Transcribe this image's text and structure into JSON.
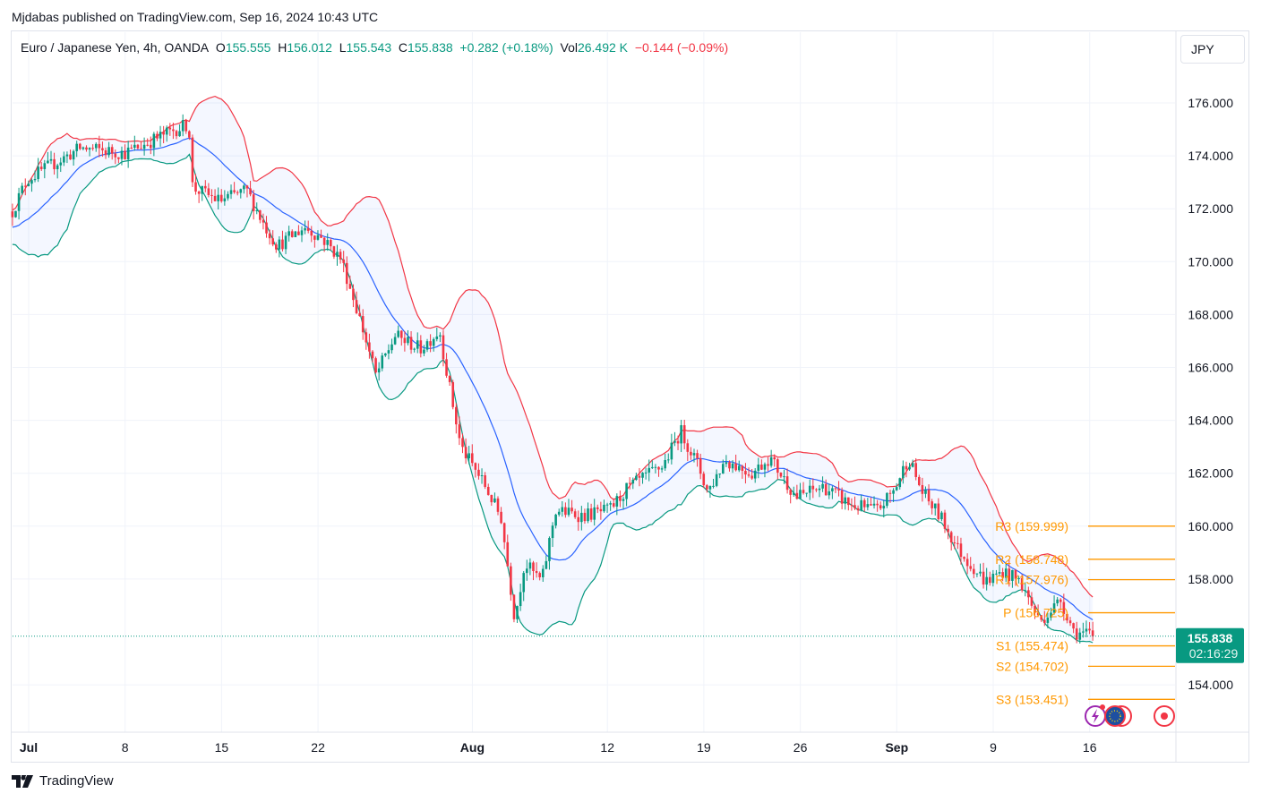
{
  "publisher": "Mjdabas published on TradingView.com, Sep 16, 2024 10:43 UTC",
  "legend": {
    "symbol": "Euro / Japanese Yen, 4h, OANDA",
    "o_label": "O",
    "o": "155.555",
    "h_label": "H",
    "h": "156.012",
    "l_label": "L",
    "l": "155.543",
    "c_label": "C",
    "c": "155.838",
    "change": "+0.282 (+0.18%)",
    "vol_label": "Vol",
    "vol": "26.492 K",
    "vol_change": "−0.144 (−0.09%)"
  },
  "currency_button": "JPY",
  "last_price": {
    "price": "155.838",
    "countdown": "02:16:29"
  },
  "footer_brand": "TradingView",
  "colors": {
    "up": "#089981",
    "down": "#f23645",
    "upper_band": "#f23645",
    "lower_band": "#089981",
    "basis": "#2962ff",
    "pivot": "#ff9800",
    "band_fill": "#2962ff"
  },
  "chart_data": {
    "type": "candlestick",
    "title": "Euro / Japanese Yen, 4h, OANDA",
    "ylim": [
      153,
      177
    ],
    "y_ticks": [
      {
        "value": 176,
        "label": "176.000"
      },
      {
        "value": 174,
        "label": "174.000"
      },
      {
        "value": 172,
        "label": "172.000"
      },
      {
        "value": 170,
        "label": "170.000"
      },
      {
        "value": 168,
        "label": "168.000"
      },
      {
        "value": 166,
        "label": "166.000"
      },
      {
        "value": 164,
        "label": "164.000"
      },
      {
        "value": 162,
        "label": "162.000"
      },
      {
        "value": 160,
        "label": "160.000"
      },
      {
        "value": 158,
        "label": "158.000"
      },
      {
        "value": 154,
        "label": "154.000"
      }
    ],
    "x_ticks": [
      {
        "t": 0,
        "label": "Jul",
        "bold": true
      },
      {
        "t": 5,
        "label": "8"
      },
      {
        "t": 10,
        "label": "15"
      },
      {
        "t": 15,
        "label": "22"
      },
      {
        "t": 23,
        "label": "Aug",
        "bold": true
      },
      {
        "t": 30,
        "label": "12"
      },
      {
        "t": 35,
        "label": "19"
      },
      {
        "t": 40,
        "label": "26"
      },
      {
        "t": 45,
        "label": "Sep",
        "bold": true
      },
      {
        "t": 50,
        "label": "9"
      },
      {
        "t": 55,
        "label": "16"
      }
    ],
    "x_unit": "trading days since Jul 1, 2024",
    "close_keypoints": [
      [
        -0.84,
        171.9
      ],
      [
        -0.1,
        173.1
      ],
      [
        2.7,
        174.3
      ],
      [
        5.0,
        174.1
      ],
      [
        7.6,
        175.0
      ],
      [
        8.3,
        175.2
      ],
      [
        8.5,
        172.8
      ],
      [
        9.9,
        172.3
      ],
      [
        11.3,
        172.7
      ],
      [
        12.2,
        171.4
      ],
      [
        12.9,
        170.6
      ],
      [
        14.3,
        171.3
      ],
      [
        15.2,
        170.9
      ],
      [
        16.2,
        170.1
      ],
      [
        17.1,
        168.0
      ],
      [
        18.0,
        165.7
      ],
      [
        19.0,
        167.2
      ],
      [
        20.3,
        166.7
      ],
      [
        21.3,
        167.4
      ],
      [
        21.7,
        165.7
      ],
      [
        22.4,
        163.0
      ],
      [
        23.6,
        161.6
      ],
      [
        24.5,
        160.3
      ],
      [
        25.2,
        156.5
      ],
      [
        25.7,
        158.6
      ],
      [
        26.6,
        157.9
      ],
      [
        27.3,
        160.6
      ],
      [
        28.7,
        160.4
      ],
      [
        30.1,
        160.6
      ],
      [
        31.0,
        161.4
      ],
      [
        32.9,
        162.3
      ],
      [
        33.8,
        163.6
      ],
      [
        34.7,
        162.3
      ],
      [
        35.2,
        161.3
      ],
      [
        36.1,
        162.5
      ],
      [
        37.5,
        162.0
      ],
      [
        38.4,
        162.6
      ],
      [
        39.8,
        161.1
      ],
      [
        41.2,
        161.5
      ],
      [
        42.6,
        160.8
      ],
      [
        44.0,
        160.6
      ],
      [
        44.9,
        161.4
      ],
      [
        45.6,
        162.6
      ],
      [
        46.3,
        161.3
      ],
      [
        47.3,
        160.3
      ],
      [
        48.2,
        159.1
      ],
      [
        49.6,
        157.9
      ],
      [
        50.5,
        158.3
      ],
      [
        51.4,
        157.9
      ],
      [
        52.4,
        156.4
      ],
      [
        53.5,
        157.2
      ],
      [
        54.2,
        156.0
      ],
      [
        55.3,
        155.838
      ]
    ],
    "indicators": {
      "bollinger": {
        "length": 20,
        "mult": 2
      }
    },
    "pivots": [
      {
        "name": "R3",
        "value": 159.999,
        "label": "R3 (159.999)"
      },
      {
        "name": "R2",
        "value": 158.748,
        "label": "R2 (158.748)"
      },
      {
        "name": "R1",
        "value": 157.976,
        "label": "R1 (157.976)"
      },
      {
        "name": "P",
        "value": 156.725,
        "label": "P (156.725)"
      },
      {
        "name": "S1",
        "value": 155.474,
        "label": "S1 (155.474)"
      },
      {
        "name": "S2",
        "value": 154.702,
        "label": "S2 (154.702)"
      },
      {
        "name": "S3",
        "value": 153.451,
        "label": "S3 (153.451)"
      }
    ],
    "last_close": 155.838
  }
}
